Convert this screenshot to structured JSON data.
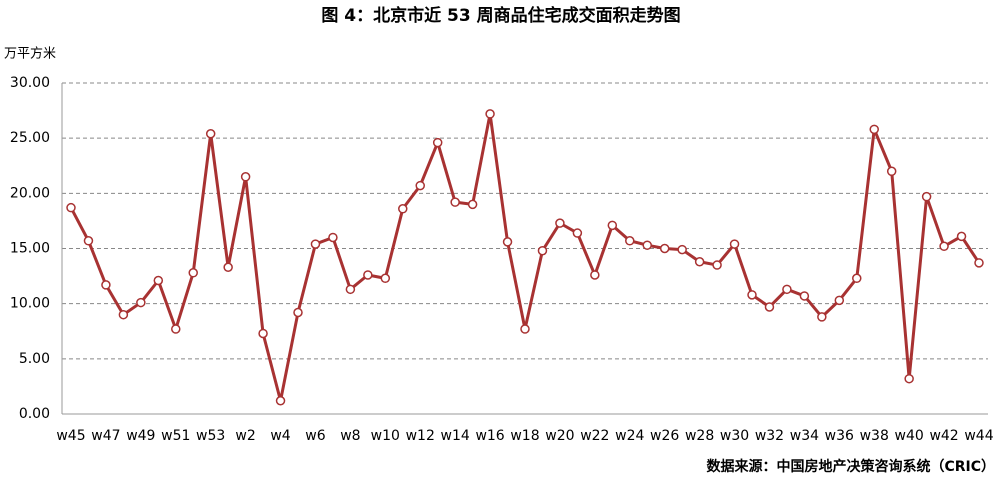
{
  "chart_data": {
    "type": "line",
    "title": "图 4：北京市近 53 周商品住宅成交面积走势图",
    "y_label": "万平方米",
    "source": "数据来源：中国房地产决策咨询系统（CRIC）",
    "categories": [
      "w45",
      null,
      "w47",
      null,
      "w49",
      null,
      "w51",
      null,
      "w53",
      null,
      "w2",
      null,
      "w4",
      null,
      "w6",
      null,
      "w8",
      null,
      "w10",
      null,
      "w12",
      null,
      "w14",
      null,
      "w16",
      null,
      "w18",
      null,
      "w20",
      null,
      "w22",
      null,
      "w24",
      null,
      "w26",
      null,
      "w28",
      null,
      "w30",
      null,
      "w32",
      null,
      "w34",
      null,
      "w36",
      null,
      "w38",
      null,
      "w40",
      null,
      "w42",
      null,
      "w44"
    ],
    "series": [
      {
        "name": "成交面积",
        "color": "#a83232",
        "values": [
          18.7,
          15.7,
          11.7,
          9.0,
          10.1,
          12.1,
          7.7,
          12.8,
          25.4,
          13.3,
          21.5,
          7.3,
          1.2,
          9.2,
          15.4,
          16.0,
          11.3,
          12.6,
          12.3,
          18.6,
          20.7,
          24.6,
          19.2,
          19.0,
          27.2,
          15.6,
          7.7,
          14.8,
          17.3,
          16.4,
          12.6,
          17.1,
          15.7,
          15.3,
          15.0,
          14.9,
          13.8,
          13.5,
          15.4,
          10.8,
          9.7,
          11.3,
          10.7,
          8.8,
          10.3,
          12.3,
          25.8,
          22.0,
          3.2,
          19.7,
          15.2,
          16.1,
          13.7
        ]
      }
    ],
    "ylim": [
      0,
      30
    ],
    "yticks": [
      {
        "value": 0,
        "label": "0.00"
      },
      {
        "value": 5,
        "label": "5.00"
      },
      {
        "value": 10,
        "label": "10.00"
      },
      {
        "value": 15,
        "label": "15.00"
      },
      {
        "value": 20,
        "label": "20.00"
      },
      {
        "value": 25,
        "label": "25.00"
      },
      {
        "value": 30,
        "label": "30.00"
      }
    ],
    "grid": true
  }
}
